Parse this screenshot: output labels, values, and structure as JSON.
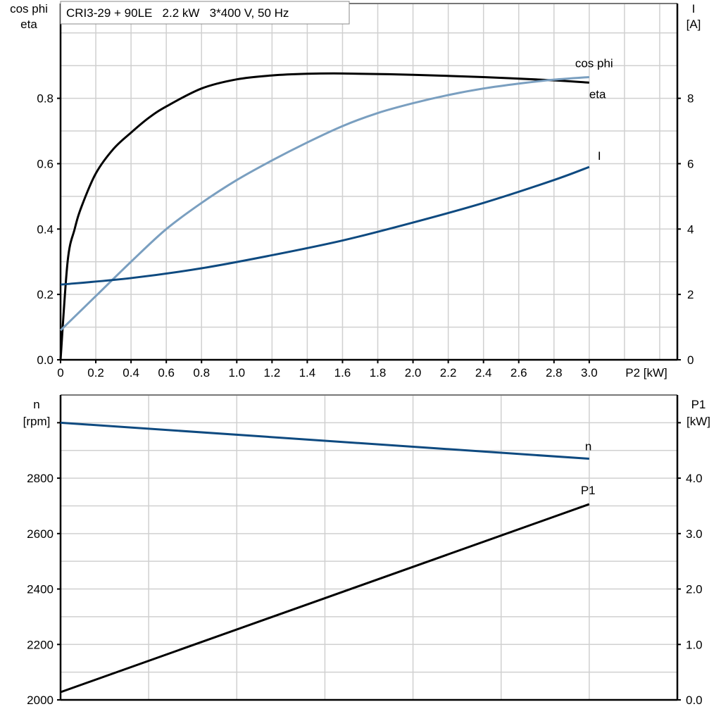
{
  "chart_data": [
    {
      "type": "line",
      "title": "CRI3-29 + 90LE   2.2 kW   3*400 V, 50 Hz",
      "xlabel": "P2 [kW]",
      "ylabel_left": [
        "cos phi",
        "eta"
      ],
      "ylabel_right": [
        "I",
        "[A]"
      ],
      "xlim": [
        0,
        3.5
      ],
      "ylim_left": [
        0,
        1.09
      ],
      "ylim_right": [
        0,
        10.9
      ],
      "x_ticks": [
        "0",
        "0.2",
        "0.4",
        "0.6",
        "0.8",
        "1.0",
        "1.2",
        "1.4",
        "1.6",
        "1.8",
        "2.0",
        "2.2",
        "2.4",
        "2.6",
        "2.8",
        "3.0"
      ],
      "y_left_ticks": [
        "0.0",
        "0.2",
        "0.4",
        "0.6",
        "0.8"
      ],
      "y_right_ticks": [
        "0",
        "2",
        "4",
        "6",
        "8"
      ],
      "grid": true,
      "series": [
        {
          "name": "eta",
          "axis": "left",
          "color": "#000000",
          "x": [
            0,
            0.04,
            0.08,
            0.12,
            0.2,
            0.3,
            0.4,
            0.5,
            0.6,
            0.8,
            1.0,
            1.2,
            1.4,
            1.6,
            2.0,
            2.4,
            2.8,
            3.0
          ],
          "y": [
            0,
            0.3,
            0.4,
            0.47,
            0.57,
            0.645,
            0.695,
            0.74,
            0.775,
            0.83,
            0.858,
            0.87,
            0.875,
            0.876,
            0.872,
            0.865,
            0.855,
            0.848
          ]
        },
        {
          "name": "cos phi",
          "axis": "left",
          "color": "#7a9fc0",
          "x": [
            0,
            0.2,
            0.4,
            0.6,
            0.8,
            1.0,
            1.2,
            1.4,
            1.6,
            1.8,
            2.0,
            2.2,
            2.4,
            2.6,
            2.8,
            3.0
          ],
          "y": [
            0.09,
            0.195,
            0.3,
            0.4,
            0.48,
            0.55,
            0.61,
            0.665,
            0.715,
            0.755,
            0.785,
            0.81,
            0.83,
            0.845,
            0.857,
            0.865
          ]
        },
        {
          "name": "I",
          "axis": "right",
          "color": "#0e4a80",
          "x": [
            0,
            0.4,
            0.8,
            1.2,
            1.6,
            2.0,
            2.4,
            2.8,
            3.0
          ],
          "y": [
            2.3,
            2.5,
            2.8,
            3.2,
            3.65,
            4.2,
            4.8,
            5.5,
            5.9
          ]
        }
      ]
    },
    {
      "type": "line",
      "xlim": [
        0,
        3.5
      ],
      "ylabel_left": [
        "n",
        "[rpm]"
      ],
      "ylabel_right": [
        "P1",
        "[kW]"
      ],
      "ylim_left": [
        2000,
        3100
      ],
      "ylim_right": [
        0,
        5.5
      ],
      "y_left_ticks": [
        "2000",
        "2200",
        "2400",
        "2600",
        "2800",
        ""
      ],
      "y_right_ticks": [
        "0.0",
        "1.0",
        "2.0",
        "3.0",
        "4.0",
        ""
      ],
      "grid": true,
      "series": [
        {
          "name": "n",
          "axis": "left",
          "color": "#0e4a80",
          "x": [
            0,
            3.0
          ],
          "y": [
            3000,
            2870
          ]
        },
        {
          "name": "P1",
          "axis": "right",
          "color": "#000000",
          "x": [
            0,
            3.0
          ],
          "y": [
            0.14,
            3.53
          ]
        }
      ]
    }
  ]
}
